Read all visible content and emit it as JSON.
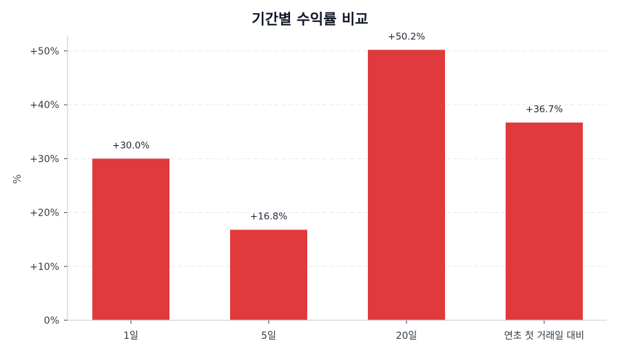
{
  "chart_data": {
    "type": "bar",
    "title": "기간별 수익률 비교",
    "xlabel": "",
    "ylabel": "%",
    "categories": [
      "1일",
      "5일",
      "20일",
      "연초 첫 거래일 대비"
    ],
    "values": [
      30.0,
      16.8,
      50.2,
      36.7
    ],
    "value_labels": [
      "+30.0%",
      "+16.8%",
      "+50.2%",
      "+36.7%"
    ],
    "ylim": [
      0,
      52.8
    ],
    "yticks": [
      0,
      10,
      20,
      30,
      40,
      50
    ],
    "ytick_labels": [
      "0%",
      "+10%",
      "+20%",
      "+30%",
      "+40%",
      "+50%"
    ],
    "grid": {
      "y": true,
      "style": "dashed"
    },
    "legend": null,
    "colors": {
      "bar": "#e03a3c",
      "grid": "#e5e7eb",
      "axis": "#cfd3dc",
      "text": "#333a4a",
      "title": "#111827"
    }
  }
}
